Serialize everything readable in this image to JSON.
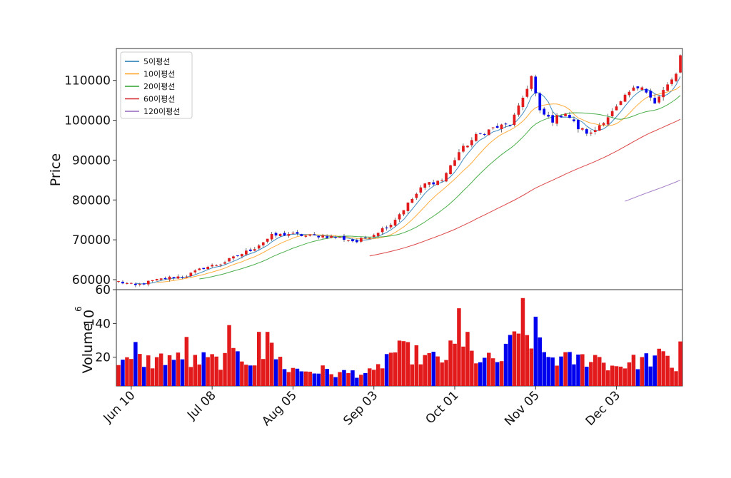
{
  "chart_data": {
    "type": "candlestick",
    "legend_position": "top-left",
    "colors": {
      "up": "#e31a1c",
      "down": "#0000ee",
      "ma5": "#1f77b4",
      "ma10": "#ff9f1c",
      "ma20": "#2ca02c",
      "ma60": "#d62728",
      "ma120": "#9467bd",
      "frame": "#333333"
    },
    "price_panel": {
      "ylabel": "Price",
      "ylim": [
        57500,
        118000
      ],
      "yticks": [
        60000,
        70000,
        80000,
        90000,
        100000,
        110000
      ],
      "ytick_labels": [
        "60000",
        "70000",
        "80000",
        "90000",
        "100000",
        "110000"
      ]
    },
    "volume_panel": {
      "ylabel": "Volume",
      "multiplier": "10",
      "multiplier_exp": "6",
      "ylim": [
        3,
        60
      ],
      "yticks": [
        20,
        40,
        60
      ],
      "ytick_labels": [
        "20",
        "40",
        "60"
      ]
    },
    "legend": [
      "5이평선",
      "10이평선",
      "20이평선",
      "60이평선",
      "120이평선"
    ],
    "x_ticks": [
      {
        "index": 3,
        "label": "Jun 10"
      },
      {
        "index": 22,
        "label": "Jul 08"
      },
      {
        "index": 41,
        "label": "Aug 05"
      },
      {
        "index": 60,
        "label": "Sep 03"
      },
      {
        "index": 79,
        "label": "Oct 01"
      },
      {
        "index": 98,
        "label": "Nov 05"
      },
      {
        "index": 117,
        "label": "Dec 03"
      }
    ],
    "anchors": [
      [
        0,
        59500
      ],
      [
        4,
        58500
      ],
      [
        8,
        59700
      ],
      [
        12,
        60500
      ],
      [
        16,
        61000
      ],
      [
        20,
        63000
      ],
      [
        24,
        64000
      ],
      [
        28,
        66000
      ],
      [
        32,
        68000
      ],
      [
        36,
        71000
      ],
      [
        40,
        71500
      ],
      [
        44,
        71000
      ],
      [
        48,
        71000
      ],
      [
        52,
        70500
      ],
      [
        56,
        69500
      ],
      [
        60,
        71500
      ],
      [
        64,
        74000
      ],
      [
        68,
        79000
      ],
      [
        72,
        84000
      ],
      [
        76,
        85000
      ],
      [
        80,
        92000
      ],
      [
        84,
        96000
      ],
      [
        88,
        98000
      ],
      [
        92,
        99000
      ],
      [
        94,
        103000
      ],
      [
        97,
        111000
      ],
      [
        99,
        102000
      ],
      [
        102,
        100000
      ],
      [
        105,
        102000
      ],
      [
        108,
        98000
      ],
      [
        111,
        96500
      ],
      [
        114,
        100000
      ],
      [
        117,
        103000
      ],
      [
        120,
        107000
      ],
      [
        123,
        109000
      ],
      [
        126,
        104000
      ],
      [
        129,
        109000
      ],
      [
        131,
        111000
      ],
      [
        132,
        116000
      ]
    ],
    "volume_anchors": [
      [
        0,
        16
      ],
      [
        4,
        20
      ],
      [
        8,
        19
      ],
      [
        12,
        22
      ],
      [
        16,
        18
      ],
      [
        20,
        20
      ],
      [
        24,
        19
      ],
      [
        28,
        22
      ],
      [
        32,
        20
      ],
      [
        36,
        25
      ],
      [
        40,
        14
      ],
      [
        44,
        13
      ],
      [
        48,
        13
      ],
      [
        52,
        11
      ],
      [
        56,
        12
      ],
      [
        60,
        11
      ],
      [
        64,
        25
      ],
      [
        68,
        25
      ],
      [
        72,
        21
      ],
      [
        76,
        20
      ],
      [
        79,
        28
      ],
      [
        82,
        24
      ],
      [
        86,
        19
      ],
      [
        90,
        20
      ],
      [
        94,
        38
      ],
      [
        97,
        34
      ],
      [
        100,
        23
      ],
      [
        104,
        20
      ],
      [
        108,
        20
      ],
      [
        112,
        22
      ],
      [
        116,
        16
      ],
      [
        120,
        18
      ],
      [
        124,
        20
      ],
      [
        128,
        22
      ],
      [
        131,
        14
      ],
      [
        132,
        34
      ]
    ],
    "volume_spikes": [
      [
        4,
        29
      ],
      [
        16,
        32
      ],
      [
        26,
        39
      ],
      [
        33,
        35
      ],
      [
        35,
        35
      ],
      [
        80,
        49
      ],
      [
        82,
        35
      ],
      [
        94,
        34
      ],
      [
        95,
        55
      ],
      [
        98,
        44
      ]
    ]
  }
}
